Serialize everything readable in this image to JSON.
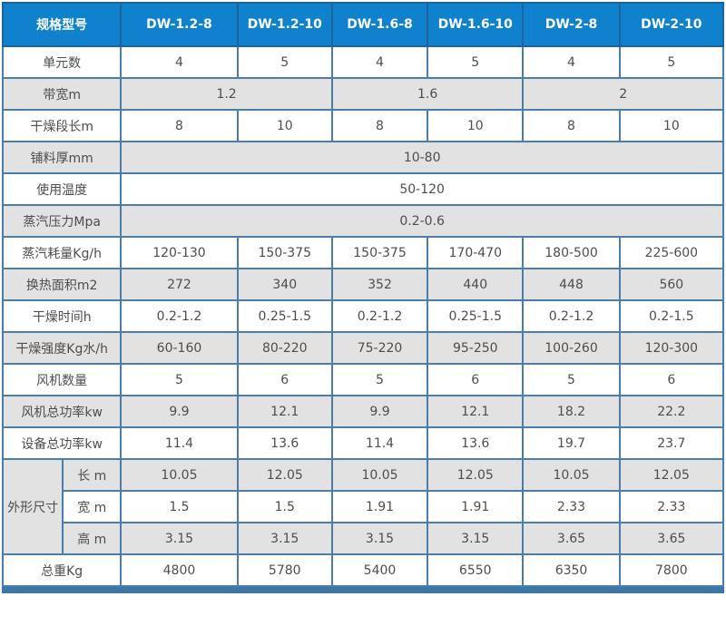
{
  "accent_colors": {
    "header_bg": "#0f81cd",
    "header_text": "#ffffff",
    "header_border": "#21619c",
    "grid_border": "#4a7da9",
    "outer_border": "#2a659e",
    "shaded_row_bg": "#e2e2e2",
    "body_text": "#4d4d4d",
    "bottom_bar": "#3d77a8"
  },
  "chart_data": {
    "type": "table",
    "corner_label": "规格型号",
    "columns": [
      "DW-1.2-8",
      "DW-1.2-10",
      "DW-1.6-8",
      "DW-1.6-10",
      "DW-2-8",
      "DW-2-10"
    ],
    "rows": [
      {
        "label": "单元数",
        "values": [
          "4",
          "5",
          "4",
          "5",
          "4",
          "5"
        ]
      },
      {
        "label": "带宽m",
        "values": [
          "1.2",
          "1.6",
          "2"
        ]
      },
      {
        "label": "干燥段长m",
        "values": [
          "8",
          "10",
          "8",
          "10",
          "8",
          "10"
        ]
      },
      {
        "label": "铺料厚mm",
        "values": [
          "10-80"
        ]
      },
      {
        "label": "使用温度",
        "values": [
          "50-120"
        ]
      },
      {
        "label": "蒸汽压力Mpa",
        "values": [
          "0.2-0.6"
        ]
      },
      {
        "label": "蒸汽耗量Kg/h",
        "values": [
          "120-130",
          "150-375",
          "150-375",
          "170-470",
          "180-500",
          "225-600"
        ]
      },
      {
        "label": "换热面积m2",
        "values": [
          "272",
          "340",
          "352",
          "440",
          "448",
          "560"
        ]
      },
      {
        "label": "干燥时间h",
        "values": [
          "0.2-1.2",
          "0.25-1.5",
          "0.2-1.2",
          "0.25-1.5",
          "0.2-1.2",
          "0.2-1.5"
        ]
      },
      {
        "label": "干燥强度Kg水/h",
        "values": [
          "60-160",
          "80-220",
          "75-220",
          "95-250",
          "100-260",
          "120-300"
        ]
      },
      {
        "label": "风机数量",
        "values": [
          "5",
          "6",
          "5",
          "6",
          "5",
          "6"
        ]
      },
      {
        "label": "风机总功率kw",
        "values": [
          "9.9",
          "12.1",
          "9.9",
          "12.1",
          "18.2",
          "22.2"
        ]
      },
      {
        "label": "设备总功率kw",
        "values": [
          "11.4",
          "13.6",
          "11.4",
          "13.6",
          "19.7",
          "23.7"
        ]
      }
    ],
    "dimension_group": {
      "label": "外形尺寸",
      "rows": [
        {
          "label": "长 m",
          "values": [
            "10.05",
            "12.05",
            "10.05",
            "12.05",
            "10.05",
            "12.05"
          ]
        },
        {
          "label": "宽 m",
          "values": [
            "1.5",
            "1.5",
            "1.91",
            "1.91",
            "2.33",
            "2.33"
          ]
        },
        {
          "label": "高 m",
          "values": [
            "3.15",
            "3.15",
            "3.15",
            "3.15",
            "3.65",
            "3.65"
          ]
        }
      ]
    },
    "footer_row": {
      "label": "总重Kg",
      "values": [
        "4800",
        "5780",
        "5400",
        "6550",
        "6350",
        "7800"
      ]
    }
  }
}
